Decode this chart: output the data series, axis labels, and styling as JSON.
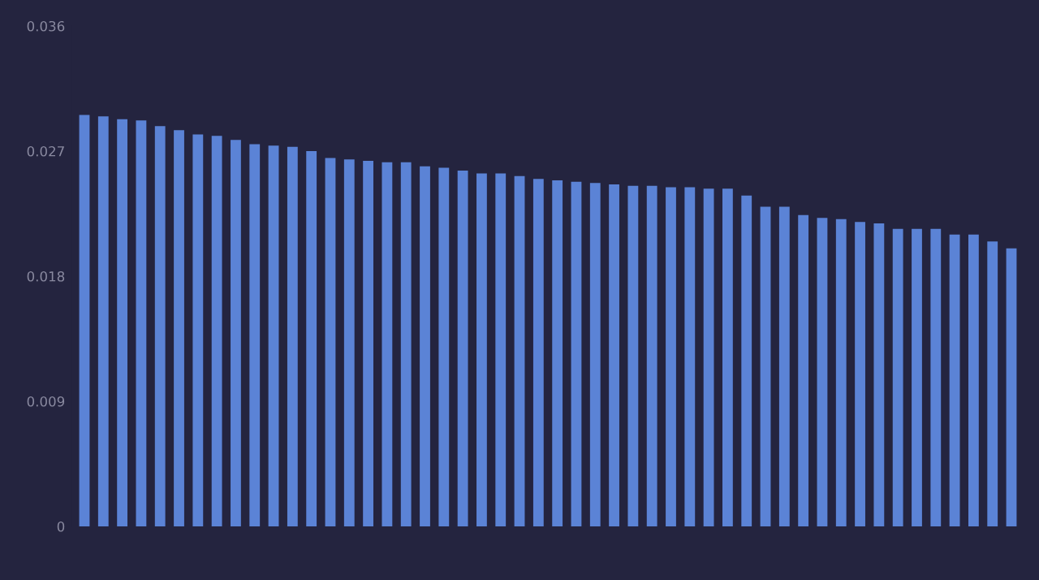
{
  "chart_data": {
    "type": "bar",
    "categories": [
      null,
      null,
      null,
      null,
      null,
      null,
      null,
      null,
      null,
      null,
      null,
      null,
      null,
      null,
      null,
      null,
      null,
      null,
      null,
      null,
      null,
      null,
      null,
      null,
      null,
      null,
      null,
      null,
      null,
      null,
      null,
      null,
      null,
      null,
      null,
      null,
      null,
      null,
      null,
      null,
      null,
      null,
      null,
      null,
      null,
      null,
      null,
      null,
      null,
      null
    ],
    "values": [
      0.0296,
      0.0295,
      0.0293,
      0.0292,
      0.0288,
      0.0285,
      0.0282,
      0.0281,
      0.0278,
      0.0275,
      0.0274,
      0.0273,
      0.027,
      0.0265,
      0.0264,
      0.0263,
      0.0262,
      0.0262,
      0.0259,
      0.0258,
      0.0256,
      0.0254,
      0.0254,
      0.0252,
      0.025,
      0.0249,
      0.0248,
      0.0247,
      0.0246,
      0.0245,
      0.0245,
      0.0244,
      0.0244,
      0.0243,
      0.0243,
      0.0238,
      0.023,
      0.023,
      0.0224,
      0.0222,
      0.0221,
      0.0219,
      0.0218,
      0.0214,
      0.0214,
      0.0214,
      0.021,
      0.021,
      0.0205,
      0.02
    ],
    "color": "#5b83d6",
    "ylim": [
      0,
      0.036
    ],
    "yticks": [
      0,
      0.009,
      0.018,
      0.027,
      0.036
    ],
    "grid": false
  }
}
